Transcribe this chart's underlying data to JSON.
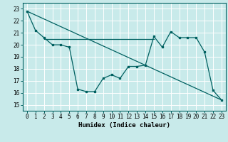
{
  "xlabel": "Humidex (Indice chaleur)",
  "bg_color": "#c8eaea",
  "line_color": "#006060",
  "grid_color": "#b0d8d8",
  "ylim": [
    14.5,
    23.5
  ],
  "xlim": [
    -0.5,
    23.5
  ],
  "yticks": [
    15,
    16,
    17,
    18,
    19,
    20,
    21,
    22,
    23
  ],
  "xticks": [
    0,
    1,
    2,
    3,
    4,
    5,
    6,
    7,
    8,
    9,
    10,
    11,
    12,
    13,
    14,
    15,
    16,
    17,
    18,
    19,
    20,
    21,
    22,
    23
  ],
  "main_line_x": [
    0,
    1,
    2,
    3,
    4,
    5,
    6,
    7,
    8,
    9,
    10,
    11,
    12,
    13,
    14,
    15,
    16,
    17,
    18,
    19,
    20,
    21,
    22,
    23
  ],
  "main_line_y": [
    22.8,
    21.2,
    20.6,
    20.0,
    20.0,
    19.8,
    16.3,
    16.1,
    16.1,
    17.2,
    17.5,
    17.2,
    18.2,
    18.2,
    18.3,
    20.7,
    19.8,
    21.1,
    20.6,
    20.6,
    20.6,
    19.4,
    16.2,
    15.4
  ],
  "diag_line_x": [
    0,
    23
  ],
  "diag_line_y": [
    22.8,
    15.4
  ],
  "horiz_line_x": [
    2,
    15
  ],
  "horiz_line_y": [
    20.5,
    20.5
  ],
  "tick_fontsize": 5.5,
  "xlabel_fontsize": 6.5
}
